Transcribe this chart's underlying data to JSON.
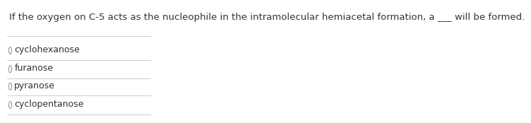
{
  "question": "If the oxygen on C-5 acts as the nucleophile in the intramolecular hemiacetal formation, a ___ will be formed.",
  "options": [
    "cyclohexanose",
    "furanose",
    "pyranose",
    "cyclopentanose"
  ],
  "bg_color": "#ffffff",
  "text_color": "#333333",
  "line_color": "#cccccc",
  "question_fontsize": 9.5,
  "option_fontsize": 9.0
}
